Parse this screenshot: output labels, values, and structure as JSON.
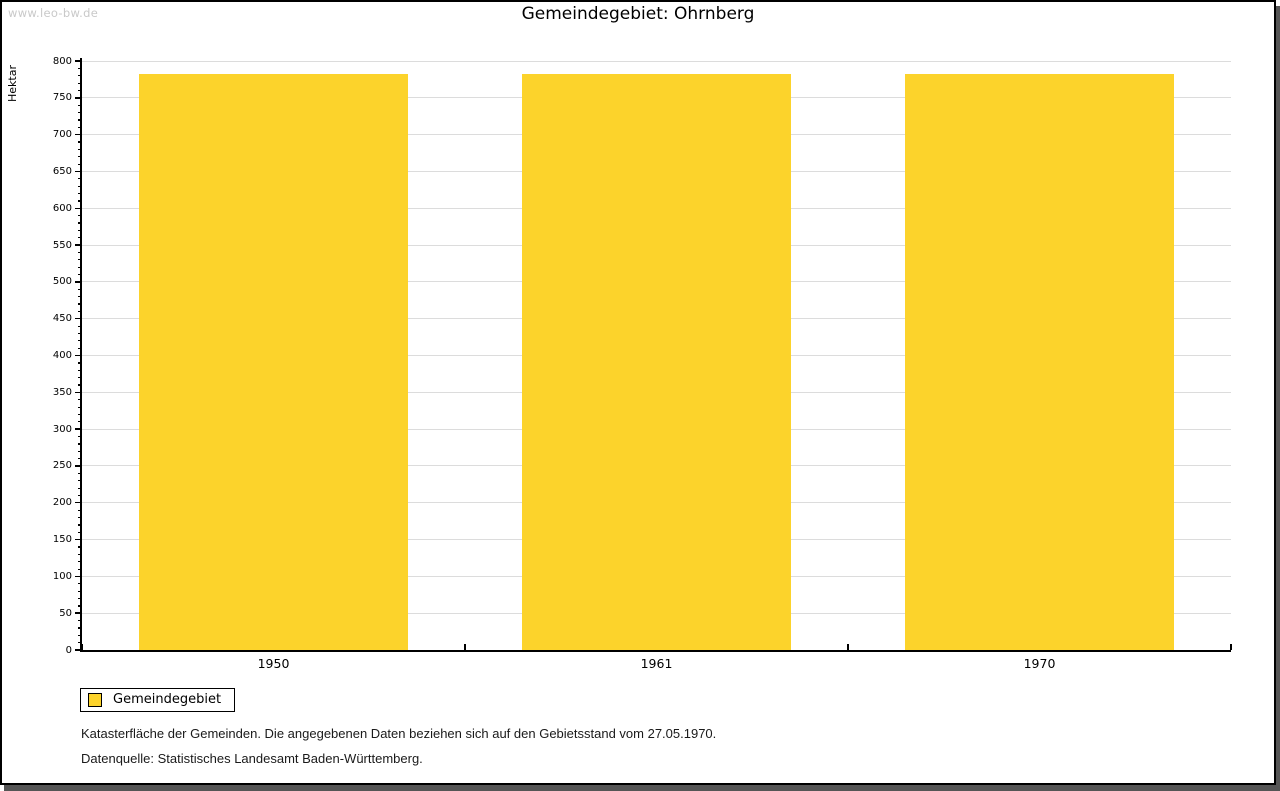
{
  "watermark": "www.leo-bw.de",
  "title": "Gemeindegebiet: Ohrnberg",
  "legend": {
    "label": "Gemeindegebiet"
  },
  "footnotes": [
    "Katasterfläche der Gemeinden. Die angegebenen Daten beziehen sich auf den Gebietsstand vom 27.05.1970.",
    "Datenquelle: Statistisches Landesamt Baden-Württemberg."
  ],
  "colors": {
    "bar": "#FCD32B",
    "grid": "#DCDCDC",
    "axis": "#000000",
    "watermark": "#C9C9C9",
    "frame_shadow": "#555555"
  },
  "chart_data": {
    "type": "bar",
    "categories": [
      "1950",
      "1961",
      "1970"
    ],
    "series": [
      {
        "name": "Gemeindegebiet",
        "values": [
          783,
          783,
          783
        ]
      }
    ],
    "title": "Gemeindegebiet: Ohrnberg",
    "xlabel": "",
    "ylabel": "Hektar",
    "ylim": [
      0,
      800
    ],
    "y_major_step": 50,
    "y_minor_step": 10,
    "grid": "horizontal-major-lines",
    "legend_position": "bottom-left",
    "bar_width_fraction": 0.7
  }
}
